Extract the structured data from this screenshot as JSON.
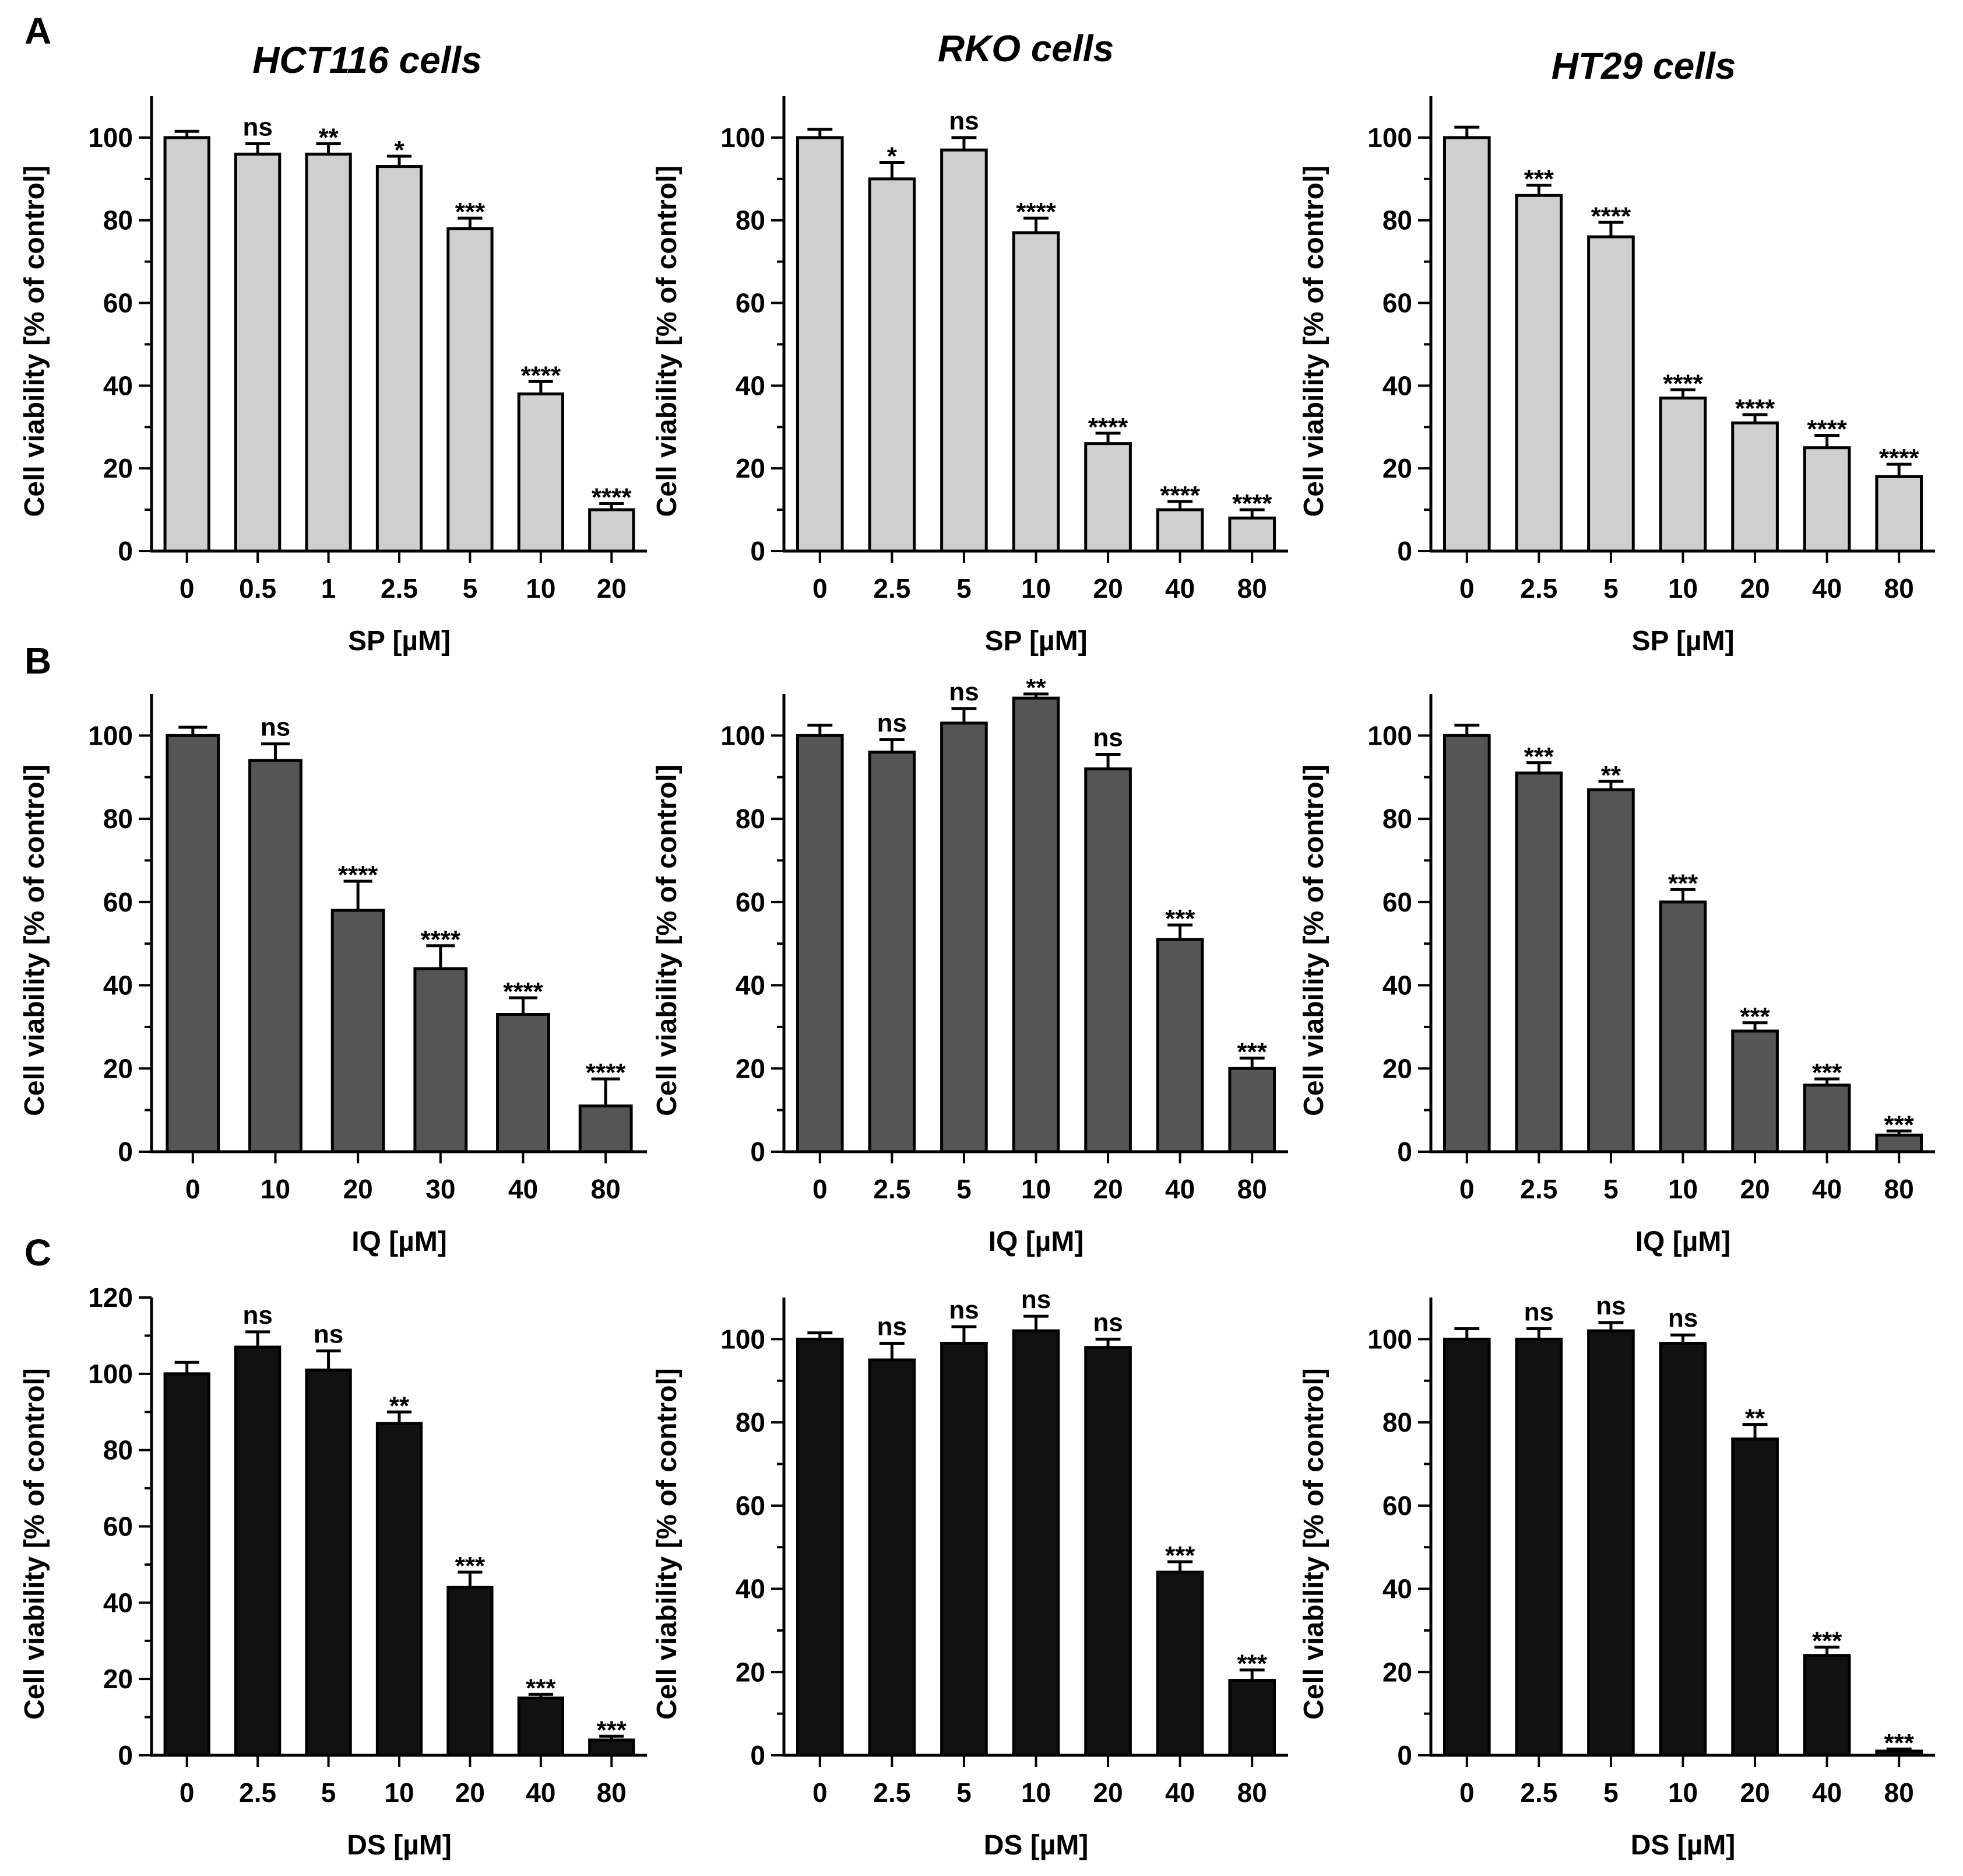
{
  "panel_letters": [
    "A",
    "B",
    "C"
  ],
  "cell_titles": [
    "HCT116 cells",
    "RKO cells",
    "HT29 cells"
  ],
  "colors": {
    "row_A": "#cfcfcf",
    "row_B": "#555555",
    "row_C": "#111111",
    "axis": "#000000"
  },
  "chart_data": [
    {
      "id": "A-HCT116",
      "row": 0,
      "col": 0,
      "type": "bar",
      "title": "HCT116 cells",
      "xlabel": "SP [µM]",
      "ylabel": "Cell viability [% of control]",
      "ylim": [
        0,
        110
      ],
      "yticks": [
        0,
        20,
        40,
        60,
        80,
        100
      ],
      "categories": [
        "0",
        "0.5",
        "1",
        "2.5",
        "5",
        "10",
        "20"
      ],
      "values": [
        100,
        96,
        96,
        93,
        78,
        38,
        10
      ],
      "errors": [
        1.5,
        2.5,
        2.5,
        2.5,
        2.5,
        3,
        1.5
      ],
      "significance": [
        "",
        "ns",
        "**",
        "*",
        "***",
        "****",
        "****"
      ]
    },
    {
      "id": "A-RKO",
      "row": 0,
      "col": 1,
      "type": "bar",
      "title": "RKO cells",
      "xlabel": "SP [µM]",
      "ylabel": "Cell viability [% of control]",
      "ylim": [
        0,
        110
      ],
      "yticks": [
        0,
        20,
        40,
        60,
        80,
        100
      ],
      "categories": [
        "0",
        "2.5",
        "5",
        "10",
        "20",
        "40",
        "80"
      ],
      "values": [
        100,
        90,
        97,
        77,
        26,
        10,
        8
      ],
      "errors": [
        2,
        4,
        3,
        3.5,
        2.5,
        2,
        2
      ],
      "significance": [
        "",
        "*",
        "ns",
        "****",
        "****",
        "****",
        "****"
      ]
    },
    {
      "id": "A-HT29",
      "row": 0,
      "col": 2,
      "type": "bar",
      "title": "HT29 cells",
      "xlabel": "SP [µM]",
      "ylabel": "Cell viability [% of control]",
      "ylim": [
        0,
        110
      ],
      "yticks": [
        0,
        20,
        40,
        60,
        80,
        100
      ],
      "categories": [
        "0",
        "2.5",
        "5",
        "10",
        "20",
        "40",
        "80"
      ],
      "values": [
        100,
        86,
        76,
        37,
        31,
        25,
        18
      ],
      "errors": [
        2.5,
        2.5,
        3.5,
        2,
        2,
        3,
        3
      ],
      "significance": [
        "",
        "***",
        "****",
        "****",
        "****",
        "****",
        "****"
      ]
    },
    {
      "id": "B-HCT116",
      "row": 1,
      "col": 0,
      "type": "bar",
      "title": "",
      "xlabel": "IQ [µM]",
      "ylabel": "Cell viability [% of control]",
      "ylim": [
        0,
        110
      ],
      "yticks": [
        0,
        20,
        40,
        60,
        80,
        100
      ],
      "categories": [
        "0",
        "10",
        "20",
        "30",
        "40",
        "80"
      ],
      "values": [
        100,
        94,
        58,
        44,
        33,
        11
      ],
      "errors": [
        2,
        4,
        7,
        5.5,
        4,
        6.5
      ],
      "significance": [
        "",
        "ns",
        "****",
        "****",
        "****",
        "****"
      ]
    },
    {
      "id": "B-RKO",
      "row": 1,
      "col": 1,
      "type": "bar",
      "title": "",
      "xlabel": "IQ [µM]",
      "ylabel": "Cell viability [% of control]",
      "ylim": [
        0,
        110
      ],
      "yticks": [
        0,
        20,
        40,
        60,
        80,
        100
      ],
      "categories": [
        "0",
        "2.5",
        "5",
        "10",
        "20",
        "40",
        "80"
      ],
      "values": [
        100,
        96,
        103,
        109,
        92,
        51,
        20
      ],
      "errors": [
        2.5,
        3,
        3.5,
        1,
        3.5,
        3.5,
        2.5
      ],
      "significance": [
        "",
        "ns",
        "ns",
        "**",
        "ns",
        "***",
        "***"
      ]
    },
    {
      "id": "B-HT29",
      "row": 1,
      "col": 2,
      "type": "bar",
      "title": "",
      "xlabel": "IQ [µM]",
      "ylabel": "Cell viability [% of control]",
      "ylim": [
        0,
        110
      ],
      "yticks": [
        0,
        20,
        40,
        60,
        80,
        100
      ],
      "categories": [
        "0",
        "2.5",
        "5",
        "10",
        "20",
        "40",
        "80"
      ],
      "values": [
        100,
        91,
        87,
        60,
        29,
        16,
        4
      ],
      "errors": [
        2.5,
        2.5,
        2,
        3,
        2,
        1.5,
        1
      ],
      "significance": [
        "",
        "***",
        "**",
        "***",
        "***",
        "***",
        "***"
      ]
    },
    {
      "id": "C-HCT116",
      "row": 2,
      "col": 0,
      "type": "bar",
      "title": "",
      "xlabel": "DS [µM]",
      "ylabel": "Cell viability [% of control]",
      "ylim": [
        0,
        120
      ],
      "yticks": [
        0,
        20,
        40,
        60,
        80,
        100,
        120
      ],
      "categories": [
        "0",
        "2.5",
        "5",
        "10",
        "20",
        "40",
        "80"
      ],
      "values": [
        100,
        107,
        101,
        87,
        44,
        15,
        4
      ],
      "errors": [
        3,
        4,
        5,
        3,
        4,
        1,
        1
      ],
      "significance": [
        "",
        "ns",
        "ns",
        "**",
        "***",
        "***",
        "***"
      ]
    },
    {
      "id": "C-RKO",
      "row": 2,
      "col": 1,
      "type": "bar",
      "title": "",
      "xlabel": "DS [µM]",
      "ylabel": "Cell viability [% of control]",
      "ylim": [
        0,
        110
      ],
      "yticks": [
        0,
        20,
        40,
        60,
        80,
        100
      ],
      "categories": [
        "0",
        "2.5",
        "5",
        "10",
        "20",
        "40",
        "80"
      ],
      "values": [
        100,
        95,
        99,
        102,
        98,
        44,
        18
      ],
      "errors": [
        1.5,
        4,
        4,
        3.5,
        2,
        2.5,
        2.5
      ],
      "significance": [
        "",
        "ns",
        "ns",
        "ns",
        "ns",
        "***",
        "***"
      ]
    },
    {
      "id": "C-HT29",
      "row": 2,
      "col": 2,
      "type": "bar",
      "title": "",
      "xlabel": "DS [µM]",
      "ylabel": "Cell viability [% of control]",
      "ylim": [
        0,
        110
      ],
      "yticks": [
        0,
        20,
        40,
        60,
        80,
        100
      ],
      "categories": [
        "0",
        "2.5",
        "5",
        "10",
        "20",
        "40",
        "80"
      ],
      "values": [
        100,
        100,
        102,
        99,
        76,
        24,
        1
      ],
      "errors": [
        2.5,
        2.5,
        2,
        2,
        3.5,
        2,
        0.5
      ],
      "significance": [
        "",
        "ns",
        "ns",
        "ns",
        "**",
        "***",
        "***"
      ]
    }
  ]
}
